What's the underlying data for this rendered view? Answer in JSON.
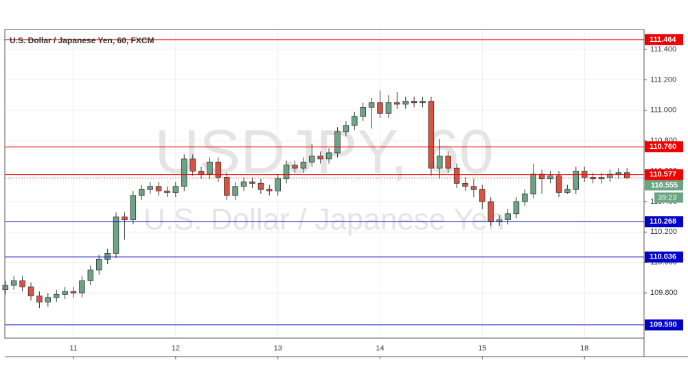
{
  "chart_data": {
    "type": "candlestick",
    "title": "U.S. Dollar / Japanese Yen, 60, FXCM",
    "watermark_symbol": "USDJPY, 60",
    "watermark_name": "U.S. Dollar / Japanese Yen",
    "up_color": "#6ba583",
    "down_color": "#d75442",
    "grid": true,
    "x": [
      -16,
      -14,
      -12,
      -10,
      -8,
      -6,
      -4,
      -2,
      0,
      2,
      4,
      6,
      8,
      10,
      12,
      14,
      16,
      18,
      20,
      22,
      24,
      26,
      28,
      30,
      32,
      34,
      36,
      38,
      40,
      42,
      44,
      46,
      48,
      50,
      52,
      54,
      56,
      58,
      60,
      62,
      64,
      66,
      68,
      70,
      72,
      74,
      76,
      78,
      80,
      82,
      84,
      86,
      88,
      90,
      92,
      94,
      96,
      98,
      100,
      102,
      104,
      106,
      108,
      110,
      112,
      114,
      116,
      118,
      120,
      122,
      124,
      126,
      128,
      130
    ],
    "open": [
      109.82,
      109.85,
      109.88,
      109.84,
      109.78,
      109.74,
      109.77,
      109.79,
      109.81,
      109.8,
      109.88,
      109.95,
      110.02,
      110.06,
      110.3,
      110.28,
      110.44,
      110.48,
      110.5,
      110.47,
      110.46,
      110.5,
      110.68,
      110.6,
      110.58,
      110.66,
      110.56,
      110.44,
      110.5,
      110.53,
      110.52,
      110.48,
      110.47,
      110.55,
      110.64,
      110.62,
      110.66,
      110.7,
      110.68,
      110.72,
      110.86,
      110.9,
      110.96,
      111.02,
      111.05,
      110.98,
      111.05,
      111.04,
      111.06,
      111.05,
      111.06,
      110.62,
      110.7,
      110.62,
      110.52,
      110.5,
      110.48,
      110.4,
      110.27,
      110.28,
      110.32,
      110.4,
      110.45,
      110.58,
      110.55,
      110.57,
      110.46,
      110.48,
      110.6,
      110.56,
      110.55,
      110.56,
      110.58,
      110.59
    ],
    "high": [
      109.88,
      109.91,
      109.91,
      109.87,
      109.81,
      109.8,
      109.82,
      109.84,
      109.84,
      109.91,
      109.98,
      110.05,
      110.09,
      110.33,
      110.33,
      110.47,
      110.51,
      110.53,
      110.53,
      110.5,
      110.53,
      110.71,
      110.71,
      110.63,
      110.69,
      110.69,
      110.59,
      110.53,
      110.56,
      110.56,
      110.55,
      110.51,
      110.58,
      110.67,
      110.67,
      110.69,
      110.78,
      110.73,
      110.75,
      110.89,
      110.93,
      110.99,
      111.05,
      111.08,
      111.13,
      111.1,
      111.12,
      111.09,
      111.09,
      111.09,
      111.09,
      110.81,
      110.73,
      110.65,
      110.56,
      110.55,
      110.51,
      110.43,
      110.31,
      110.35,
      110.43,
      110.48,
      110.65,
      110.61,
      110.6,
      110.6,
      110.51,
      110.63,
      110.63,
      110.59,
      110.59,
      110.61,
      110.62,
      110.62
    ],
    "low": [
      109.79,
      109.82,
      109.81,
      109.75,
      109.7,
      109.71,
      109.74,
      109.76,
      109.77,
      109.77,
      109.85,
      109.92,
      109.99,
      110.03,
      110.15,
      110.25,
      110.41,
      110.45,
      110.44,
      110.43,
      110.43,
      110.47,
      110.57,
      110.55,
      110.55,
      110.53,
      110.41,
      110.41,
      110.47,
      110.49,
      110.45,
      110.44,
      110.44,
      110.52,
      110.59,
      110.59,
      110.63,
      110.65,
      110.65,
      110.69,
      110.83,
      110.87,
      110.93,
      110.88,
      110.95,
      110.95,
      111.01,
      111.01,
      111.02,
      111.02,
      110.57,
      110.55,
      110.59,
      110.49,
      110.47,
      110.43,
      110.35,
      110.24,
      110.24,
      110.25,
      110.29,
      110.37,
      110.42,
      110.45,
      110.52,
      110.43,
      110.45,
      110.45,
      110.53,
      110.52,
      110.52,
      110.53,
      110.55,
      110.55
    ],
    "close": [
      109.85,
      109.88,
      109.84,
      109.78,
      109.74,
      109.77,
      109.79,
      109.81,
      109.8,
      109.88,
      109.95,
      110.02,
      110.06,
      110.3,
      110.28,
      110.44,
      110.48,
      110.5,
      110.47,
      110.46,
      110.5,
      110.68,
      110.6,
      110.58,
      110.66,
      110.56,
      110.44,
      110.5,
      110.53,
      110.52,
      110.48,
      110.47,
      110.55,
      110.64,
      110.62,
      110.66,
      110.7,
      110.68,
      110.72,
      110.86,
      110.9,
      110.96,
      111.02,
      111.05,
      110.98,
      111.05,
      111.04,
      111.06,
      111.05,
      111.06,
      110.62,
      110.7,
      110.62,
      110.52,
      110.5,
      110.48,
      110.4,
      110.27,
      110.28,
      110.32,
      110.4,
      110.45,
      110.58,
      110.55,
      110.57,
      110.46,
      110.48,
      110.6,
      110.56,
      110.55,
      110.56,
      110.58,
      110.59,
      110.555
    ],
    "xlim": [
      -16.13,
      134
    ],
    "xticks": [
      {
        "value": 0,
        "label": "11"
      },
      {
        "value": 24,
        "label": "12"
      },
      {
        "value": 48,
        "label": "13"
      },
      {
        "value": 72,
        "label": "14"
      },
      {
        "value": 96,
        "label": "15"
      },
      {
        "value": 120,
        "label": "18"
      }
    ],
    "ylim": [
      109.503,
      111.531
    ],
    "yticks": [
      {
        "value": 109.8,
        "label": "109.800"
      },
      {
        "value": 110,
        "label": "110.000"
      },
      {
        "value": 110.2,
        "label": "110.200"
      },
      {
        "value": 110.4,
        "label": "110.400"
      },
      {
        "value": 110.6,
        "label": "110.600"
      },
      {
        "value": 110.8,
        "label": "110.800"
      },
      {
        "value": 111,
        "label": "111.000"
      },
      {
        "value": 111.2,
        "label": "111.200"
      },
      {
        "value": 111.4,
        "label": "111.400"
      }
    ],
    "levels": [
      {
        "value": 111.464,
        "label": "111.464",
        "color": "#f00000"
      },
      {
        "value": 110.76,
        "label": "110.760",
        "color": "#f00000"
      },
      {
        "value": 110.577,
        "label": "110.577",
        "color": "#f00000"
      },
      {
        "value": 110.268,
        "label": "110.268",
        "color": "#0000c8"
      },
      {
        "value": 110.036,
        "label": "110.036",
        "color": "#0000c8"
      },
      {
        "value": 109.59,
        "label": "109.590",
        "color": "#0000c8"
      }
    ],
    "last_price": 110.555,
    "last_price_color": "#6ba583",
    "countdown": "39:23"
  }
}
